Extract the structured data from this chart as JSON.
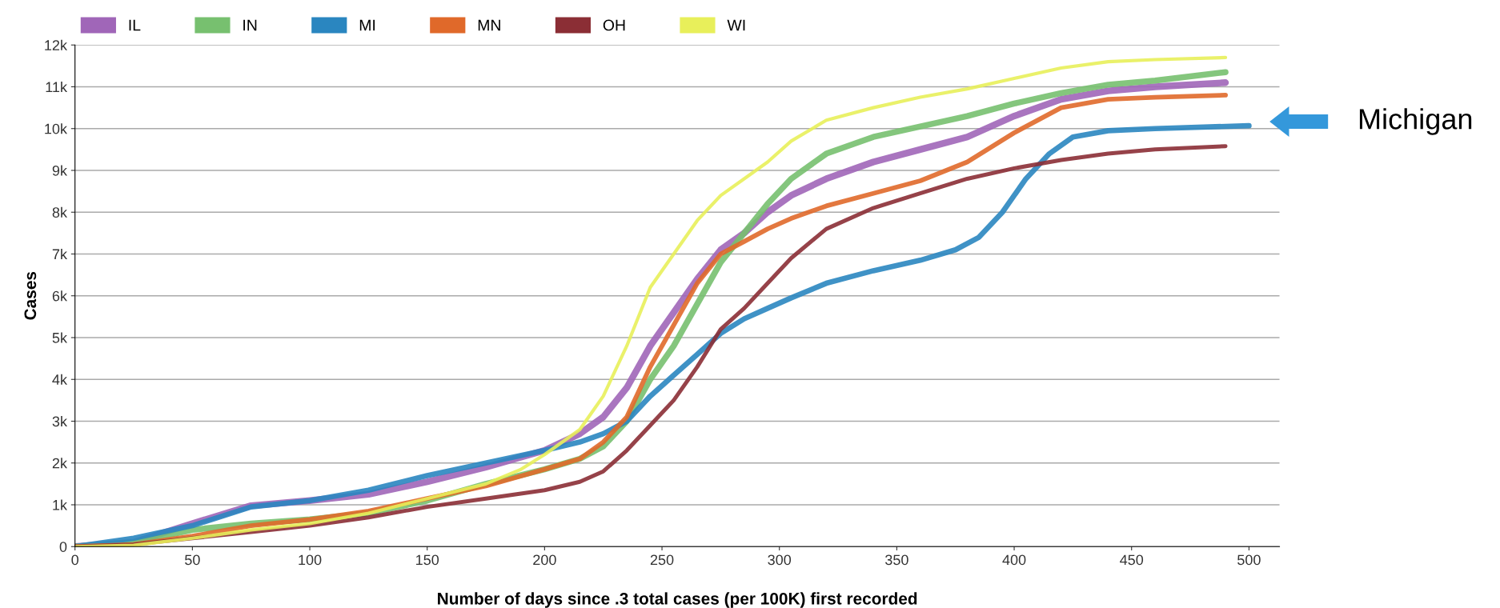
{
  "chart_data": {
    "type": "line",
    "xlabel": "Number of days since .3 total cases (per 100K) first recorded",
    "ylabel": "Cases",
    "xlim": [
      0,
      513
    ],
    "xticks": [
      0,
      50,
      100,
      150,
      200,
      250,
      300,
      350,
      400,
      450,
      500
    ],
    "ylim": [
      0,
      12000
    ],
    "yticks": [
      {
        "value": 0,
        "label": "0"
      },
      {
        "value": 1000,
        "label": "1k"
      },
      {
        "value": 2000,
        "label": "2k"
      },
      {
        "value": 3000,
        "label": "3k"
      },
      {
        "value": 4000,
        "label": "4k"
      },
      {
        "value": 5000,
        "label": "5k"
      },
      {
        "value": 6000,
        "label": "6k"
      },
      {
        "value": 7000,
        "label": "7k"
      },
      {
        "value": 8000,
        "label": "8k"
      },
      {
        "value": 9000,
        "label": "9k"
      },
      {
        "value": 10000,
        "label": "10k"
      },
      {
        "value": 11000,
        "label": "11k"
      },
      {
        "value": 12000,
        "label": "12k"
      }
    ],
    "grid": "y",
    "legend": "top left",
    "marker": "none",
    "line_style": "solid",
    "annotations": [
      "Michigan"
    ],
    "series": [
      {
        "name": "IL",
        "color": "#a066b8",
        "x": [
          0,
          25,
          50,
          75,
          100,
          125,
          150,
          175,
          200,
          215,
          225,
          235,
          245,
          255,
          265,
          275,
          285,
          295,
          305,
          320,
          340,
          360,
          380,
          400,
          420,
          440,
          460,
          490
        ],
        "values": [
          0,
          100,
          550,
          980,
          1100,
          1250,
          1550,
          1900,
          2300,
          2700,
          3100,
          3800,
          4800,
          5600,
          6400,
          7100,
          7500,
          8000,
          8400,
          8800,
          9200,
          9500,
          9800,
          10300,
          10700,
          10900,
          11000,
          11100
        ]
      },
      {
        "name": "IN",
        "color": "#77c06f",
        "x": [
          0,
          25,
          50,
          75,
          100,
          125,
          150,
          175,
          200,
          215,
          225,
          235,
          245,
          255,
          265,
          275,
          285,
          295,
          305,
          320,
          340,
          360,
          380,
          400,
          420,
          440,
          460,
          490
        ],
        "values": [
          0,
          100,
          400,
          550,
          650,
          800,
          1100,
          1500,
          1850,
          2100,
          2400,
          3000,
          4000,
          4800,
          5800,
          6800,
          7500,
          8200,
          8800,
          9400,
          9800,
          10050,
          10300,
          10600,
          10850,
          11050,
          11150,
          11350
        ]
      },
      {
        "name": "MI",
        "color": "#2a86c0",
        "x": [
          0,
          25,
          50,
          75,
          100,
          125,
          150,
          175,
          200,
          215,
          225,
          235,
          245,
          255,
          265,
          275,
          285,
          295,
          305,
          320,
          340,
          360,
          375,
          385,
          395,
          405,
          415,
          425,
          440,
          460,
          500
        ],
        "values": [
          0,
          200,
          500,
          950,
          1100,
          1350,
          1700,
          2000,
          2300,
          2500,
          2700,
          3000,
          3600,
          4100,
          4600,
          5100,
          5450,
          5700,
          5950,
          6300,
          6600,
          6850,
          7100,
          7400,
          8000,
          8800,
          9400,
          9800,
          9950,
          10000,
          10070
        ]
      },
      {
        "name": "MN",
        "color": "#e0692a",
        "x": [
          0,
          25,
          50,
          75,
          100,
          125,
          150,
          175,
          200,
          215,
          225,
          235,
          245,
          255,
          265,
          275,
          285,
          295,
          305,
          320,
          340,
          360,
          380,
          400,
          420,
          440,
          460,
          490
        ],
        "values": [
          0,
          50,
          250,
          500,
          650,
          850,
          1150,
          1450,
          1850,
          2100,
          2500,
          3100,
          4300,
          5300,
          6300,
          7000,
          7300,
          7600,
          7850,
          8150,
          8450,
          8750,
          9200,
          9900,
          10500,
          10700,
          10750,
          10800
        ]
      },
      {
        "name": "OH",
        "color": "#8b2e35",
        "x": [
          0,
          25,
          50,
          75,
          100,
          125,
          150,
          175,
          200,
          215,
          225,
          235,
          245,
          255,
          265,
          275,
          285,
          295,
          305,
          320,
          340,
          360,
          380,
          400,
          420,
          440,
          460,
          490
        ],
        "values": [
          0,
          50,
          200,
          350,
          500,
          700,
          950,
          1150,
          1350,
          1550,
          1800,
          2300,
          2900,
          3500,
          4300,
          5200,
          5700,
          6300,
          6900,
          7600,
          8100,
          8450,
          8800,
          9050,
          9250,
          9400,
          9500,
          9580
        ]
      },
      {
        "name": "WI",
        "color": "#e8ef5a",
        "x": [
          0,
          25,
          50,
          75,
          100,
          125,
          150,
          175,
          190,
          200,
          215,
          225,
          235,
          245,
          255,
          265,
          275,
          285,
          295,
          305,
          320,
          340,
          360,
          380,
          400,
          420,
          440,
          460,
          490
        ],
        "values": [
          0,
          30,
          200,
          400,
          550,
          800,
          1150,
          1500,
          1850,
          2200,
          2800,
          3600,
          4800,
          6200,
          7000,
          7800,
          8400,
          8800,
          9200,
          9700,
          10200,
          10500,
          10750,
          10950,
          11200,
          11450,
          11600,
          11650,
          11700
        ]
      }
    ]
  }
}
